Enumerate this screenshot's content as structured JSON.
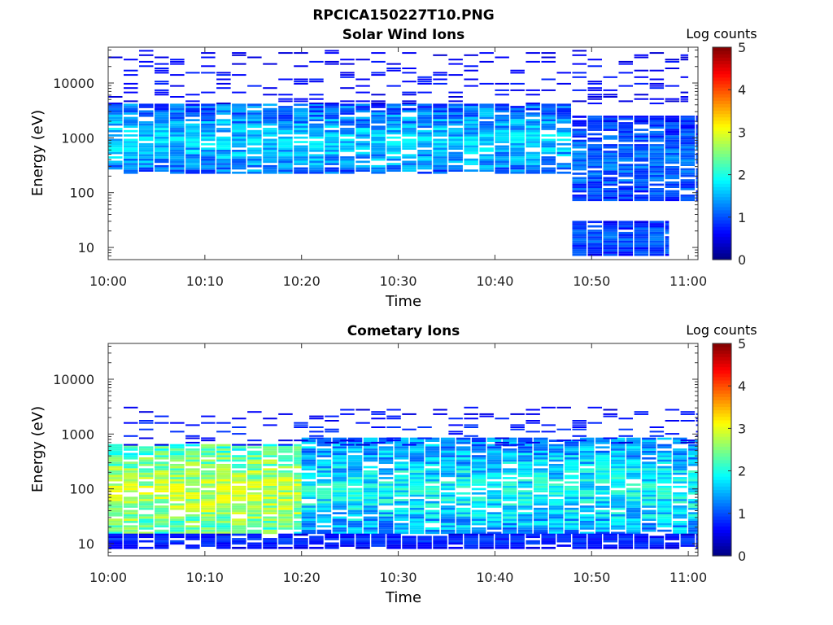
{
  "figure_title": "RPCICA150227T10.PNG",
  "chart_data": [
    {
      "type": "heatmap",
      "title": "Solar Wind Ions",
      "xlabel": "Time",
      "ylabel": "Energy (eV)",
      "x_ticks": [
        "10:00",
        "10:10",
        "10:20",
        "10:30",
        "10:40",
        "10:50",
        "11:00"
      ],
      "x_range": [
        "10:00",
        "11:01"
      ],
      "y_scale": "log",
      "y_ticks": [
        10,
        100,
        1000,
        10000
      ],
      "y_tick_labels": [
        "10",
        "100",
        "1000",
        "10000"
      ],
      "y_range": [
        6,
        45000
      ],
      "colorbar": {
        "label": "Log counts",
        "min": 0,
        "max": 5,
        "ticks": [
          "0",
          "1",
          "2",
          "3",
          "4",
          "5"
        ],
        "colormap": "jet"
      },
      "bands": [
        {
          "t_from": "10:00",
          "t_to": "10:48",
          "e_from": 220,
          "e_to": 4000,
          "level_range": [
            0.3,
            1.9
          ],
          "description": "main solar wind beam"
        },
        {
          "t_from": "10:00",
          "t_to": "11:00",
          "e_from": 4000,
          "e_to": 40000,
          "level_range": [
            0.2,
            0.8
          ],
          "description": "sparse high-energy counts"
        },
        {
          "t_from": "10:48",
          "t_to": "11:01",
          "e_from": 70,
          "e_to": 2500,
          "level_range": [
            0.2,
            1.4
          ],
          "description": "broadened distribution"
        },
        {
          "t_from": "10:48",
          "t_to": "10:58",
          "e_from": 7,
          "e_to": 30,
          "level_range": [
            0.2,
            1.3
          ],
          "description": "low-energy counts"
        }
      ]
    },
    {
      "type": "heatmap",
      "title": "Cometary Ions",
      "xlabel": "Time",
      "ylabel": "Energy (eV)",
      "x_ticks": [
        "10:00",
        "10:10",
        "10:20",
        "10:30",
        "10:40",
        "10:50",
        "11:00"
      ],
      "x_range": [
        "10:00",
        "11:01"
      ],
      "y_scale": "log",
      "y_ticks": [
        10,
        100,
        1000,
        10000
      ],
      "y_tick_labels": [
        "10",
        "100",
        "1000",
        "10000"
      ],
      "y_range": [
        6,
        45000
      ],
      "colorbar": {
        "label": "Log counts",
        "min": 0,
        "max": 5,
        "ticks": [
          "0",
          "1",
          "2",
          "3",
          "4",
          "5"
        ],
        "colormap": "jet"
      },
      "bands": [
        {
          "t_from": "10:00",
          "t_to": "10:20",
          "e_from": 15,
          "e_to": 600,
          "level_range": [
            1.3,
            3.1
          ],
          "description": "intense cometary ions"
        },
        {
          "t_from": "10:20",
          "t_to": "11:01",
          "e_from": 15,
          "e_to": 800,
          "level_range": [
            0.4,
            2.2
          ],
          "description": "weaker cometary ions"
        },
        {
          "t_from": "10:00",
          "t_to": "11:01",
          "e_from": 8,
          "e_to": 15,
          "level_range": [
            0.2,
            1.0
          ],
          "description": "lowest energy counts"
        },
        {
          "t_from": "10:00",
          "t_to": "11:01",
          "e_from": 600,
          "e_to": 3000,
          "level_range": [
            0.2,
            0.9
          ],
          "description": "upper edge counts"
        }
      ]
    }
  ]
}
